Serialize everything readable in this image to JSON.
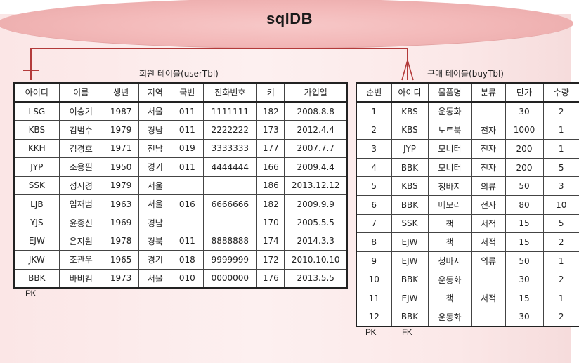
{
  "db_name": "sqlDB",
  "relationship_color": "#b33a3a",
  "user_table": {
    "caption": "회원 테이블(userTbl)",
    "columns": [
      "아이디",
      "이름",
      "생년",
      "지역",
      "국번",
      "전화번호",
      "키",
      "가입일"
    ],
    "rows": [
      [
        "LSG",
        "이승기",
        "1987",
        "서울",
        "011",
        "1111111",
        "182",
        "2008.8.8"
      ],
      [
        "KBS",
        "김범수",
        "1979",
        "경남",
        "011",
        "2222222",
        "173",
        "2012.4.4"
      ],
      [
        "KKH",
        "김경호",
        "1971",
        "전남",
        "019",
        "3333333",
        "177",
        "2007.7.7"
      ],
      [
        "JYP",
        "조용필",
        "1950",
        "경기",
        "011",
        "4444444",
        "166",
        "2009.4.4"
      ],
      [
        "SSK",
        "성시경",
        "1979",
        "서울",
        "",
        "",
        "186",
        "2013.12.12"
      ],
      [
        "LJB",
        "임재범",
        "1963",
        "서울",
        "016",
        "6666666",
        "182",
        "2009.9.9"
      ],
      [
        "YJS",
        "윤종신",
        "1969",
        "경남",
        "",
        "",
        "170",
        "2005.5.5"
      ],
      [
        "EJW",
        "은지원",
        "1978",
        "경북",
        "011",
        "8888888",
        "174",
        "2014.3.3"
      ],
      [
        "JKW",
        "조관우",
        "1965",
        "경기",
        "018",
        "9999999",
        "172",
        "2010.10.10"
      ],
      [
        "BBK",
        "바비킴",
        "1973",
        "서울",
        "010",
        "0000000",
        "176",
        "2013.5.5"
      ]
    ],
    "key_label": "PK"
  },
  "buy_table": {
    "caption": "구매 테이블(buyTbl)",
    "columns": [
      "순번",
      "아이디",
      "물품명",
      "분류",
      "단가",
      "수량"
    ],
    "rows": [
      [
        "1",
        "KBS",
        "운동화",
        "",
        "30",
        "2"
      ],
      [
        "2",
        "KBS",
        "노트북",
        "전자",
        "1000",
        "1"
      ],
      [
        "3",
        "JYP",
        "모니터",
        "전자",
        "200",
        "1"
      ],
      [
        "4",
        "BBK",
        "모니터",
        "전자",
        "200",
        "5"
      ],
      [
        "5",
        "KBS",
        "청바지",
        "의류",
        "50",
        "3"
      ],
      [
        "6",
        "BBK",
        "메모리",
        "전자",
        "80",
        "10"
      ],
      [
        "7",
        "SSK",
        "책",
        "서적",
        "15",
        "5"
      ],
      [
        "8",
        "EJW",
        "책",
        "서적",
        "15",
        "2"
      ],
      [
        "9",
        "EJW",
        "청바지",
        "의류",
        "50",
        "1"
      ],
      [
        "10",
        "BBK",
        "운동화",
        "",
        "30",
        "2"
      ],
      [
        "11",
        "EJW",
        "책",
        "서적",
        "15",
        "1"
      ],
      [
        "12",
        "BBK",
        "운동화",
        "",
        "30",
        "2"
      ]
    ],
    "key_label_pk": "PK",
    "key_label_fk": "FK"
  }
}
